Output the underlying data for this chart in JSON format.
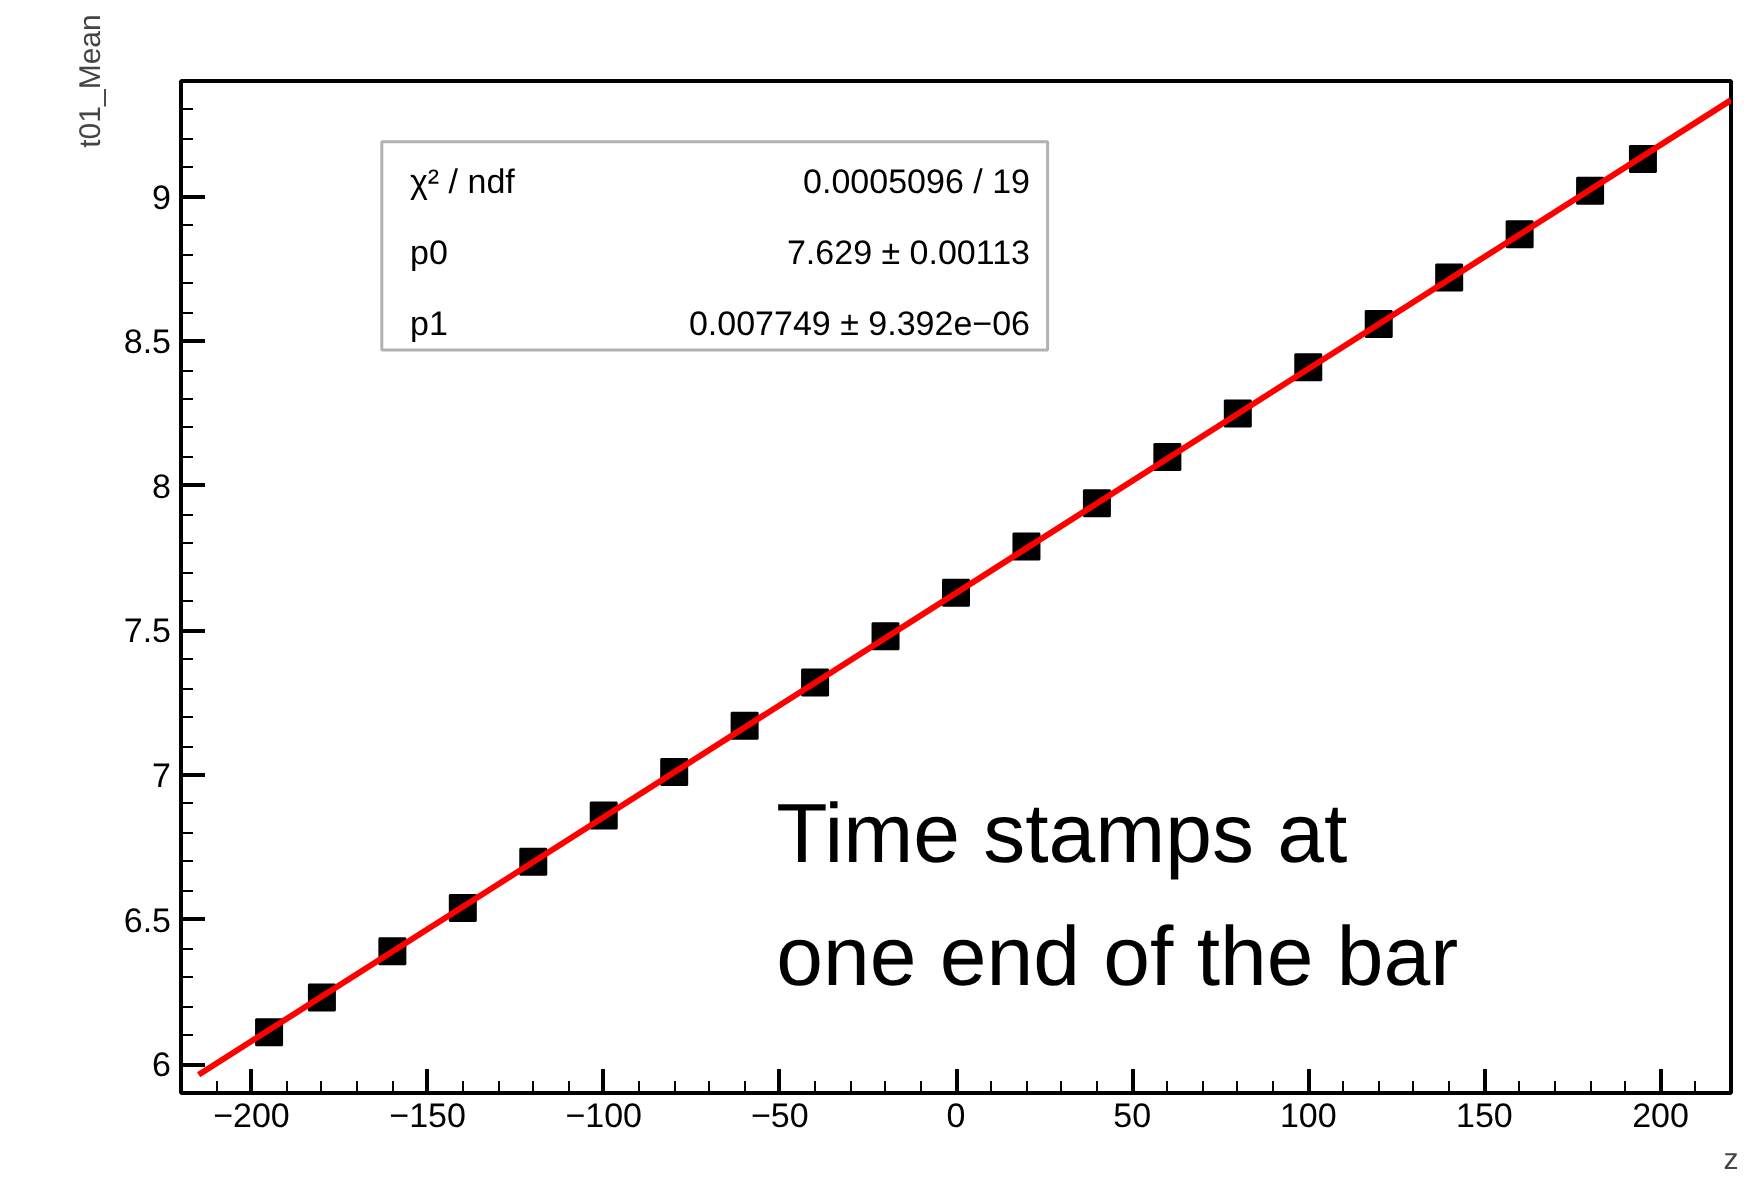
{
  "chart_data": {
    "type": "scatter",
    "xlabel": "z",
    "ylabel": "t01_Mean",
    "x": [
      -195,
      -180,
      -160,
      -140,
      -120,
      -100,
      -80,
      -60,
      -40,
      -20,
      0,
      20,
      40,
      60,
      80,
      100,
      120,
      140,
      160,
      180,
      195
    ],
    "series": [
      {
        "color": "#000000",
        "marker": "square",
        "values": [
          6.11,
          6.23,
          6.39,
          6.54,
          6.7,
          6.86,
          7.01,
          7.17,
          7.32,
          7.48,
          7.63,
          7.79,
          7.94,
          8.1,
          8.25,
          8.41,
          8.56,
          8.72,
          8.87,
          9.02,
          9.13
        ]
      },
      {
        "type": "line",
        "color": "#ff0000",
        "line_style": "solid",
        "x": [
          -215,
          220
        ],
        "values": [
          5.963,
          9.334
        ]
      }
    ],
    "xlim": [
      -220,
      220
    ],
    "ylim": [
      5.9,
      9.4
    ],
    "xticks": [
      {
        "value": -200,
        "label": "−200"
      },
      {
        "value": -150,
        "label": "−150"
      },
      {
        "value": -100,
        "label": "−100"
      },
      {
        "value": -50,
        "label": "−50"
      },
      0,
      50,
      100,
      150,
      200
    ],
    "yticks": [
      6,
      6.5,
      7,
      7.5,
      8,
      8.5,
      9
    ],
    "grid": false,
    "annotations": [
      "χ² / ndf",
      "0.0005096 / 19",
      "p0",
      "7.629 ± 0.00113",
      "p1",
      "0.007749 ± 9.392e−06",
      "Time stamps at",
      "one end of the bar"
    ]
  }
}
